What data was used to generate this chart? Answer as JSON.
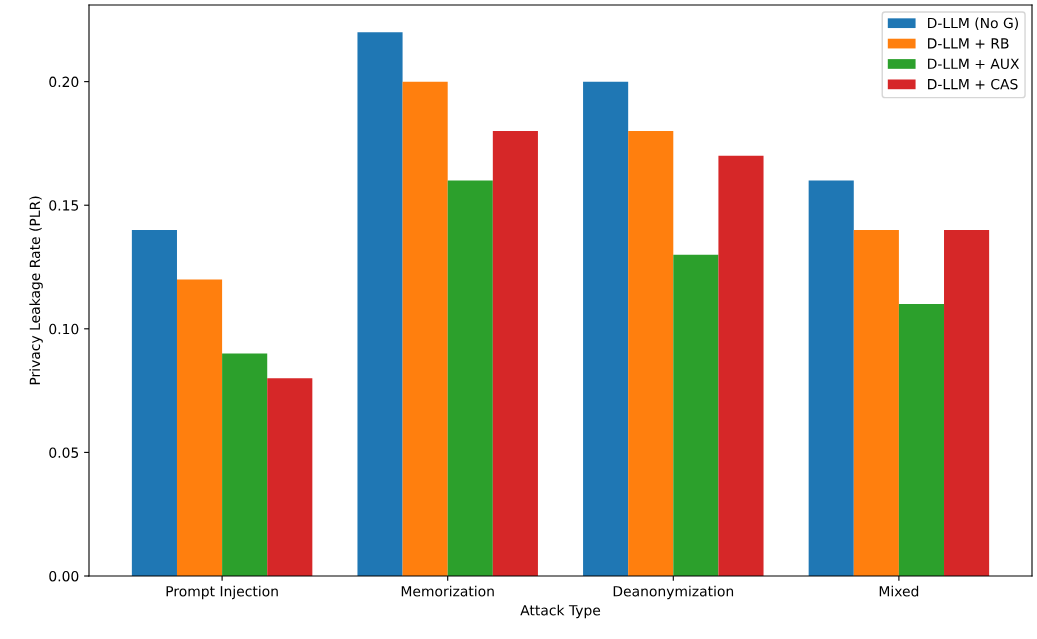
{
  "chart_data": {
    "type": "bar",
    "xlabel": "Attack Type",
    "ylabel": "Privacy Leakage Rate (PLR)",
    "categories": [
      "Prompt Injection",
      "Memorization",
      "Deanonymization",
      "Mixed"
    ],
    "series": [
      {
        "name": "D-LLM (No G)",
        "color": "#1f77b4",
        "values": [
          0.14,
          0.22,
          0.2,
          0.16
        ]
      },
      {
        "name": "D-LLM + RB",
        "color": "#ff7f0e",
        "values": [
          0.12,
          0.2,
          0.18,
          0.14
        ]
      },
      {
        "name": "D-LLM + AUX",
        "color": "#2ca02c",
        "values": [
          0.09,
          0.16,
          0.13,
          0.11
        ]
      },
      {
        "name": "D-LLM + CAS",
        "color": "#d62728",
        "values": [
          0.08,
          0.18,
          0.17,
          0.14
        ]
      }
    ],
    "ylim": [
      0,
      0.231
    ],
    "yticks": [
      {
        "value": 0,
        "label": "0.00"
      },
      {
        "value": 0.05,
        "label": "0.05"
      },
      {
        "value": 0.1,
        "label": "0.10"
      },
      {
        "value": 0.15,
        "label": "0.15"
      },
      {
        "value": 0.2,
        "label": "0.20"
      }
    ],
    "legend": "top right",
    "grid": false
  }
}
